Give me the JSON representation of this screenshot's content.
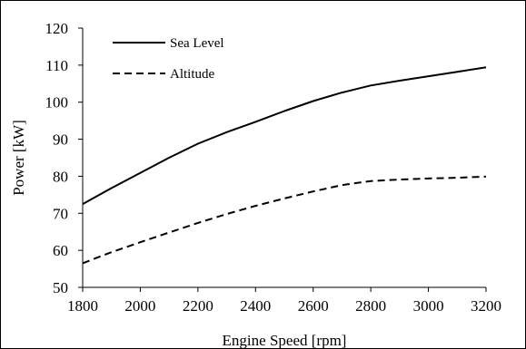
{
  "chart_data": {
    "type": "line",
    "title": "",
    "xlabel": "Engine Speed [rpm]",
    "ylabel": "Power [kW]",
    "xlim": [
      1800,
      3200
    ],
    "ylim": [
      50,
      120
    ],
    "xticks": [
      1800,
      2000,
      2200,
      2400,
      2600,
      2800,
      3000,
      3200
    ],
    "yticks": [
      50,
      60,
      70,
      80,
      90,
      100,
      110,
      120
    ],
    "grid": false,
    "legend_position": "top-left",
    "series": [
      {
        "name": "Sea Level",
        "style": "solid",
        "color": "#000000",
        "x": [
          1800,
          1900,
          2000,
          2100,
          2200,
          2300,
          2400,
          2500,
          2600,
          2700,
          2800,
          2900,
          3000,
          3100,
          3200
        ],
        "values": [
          72.5,
          76.8,
          80.9,
          85.0,
          88.8,
          91.9,
          94.7,
          97.6,
          100.3,
          102.6,
          104.5,
          105.8,
          107.0,
          108.2,
          109.4
        ]
      },
      {
        "name": "Altitude",
        "style": "dashed",
        "color": "#000000",
        "x": [
          1800,
          1900,
          2000,
          2100,
          2200,
          2300,
          2400,
          2500,
          2600,
          2700,
          2800,
          2900,
          3000,
          3100,
          3200
        ],
        "values": [
          56.5,
          59.5,
          62.2,
          64.8,
          67.4,
          69.8,
          72.0,
          74.0,
          75.9,
          77.6,
          78.7,
          79.1,
          79.4,
          79.6,
          79.9
        ]
      }
    ]
  }
}
